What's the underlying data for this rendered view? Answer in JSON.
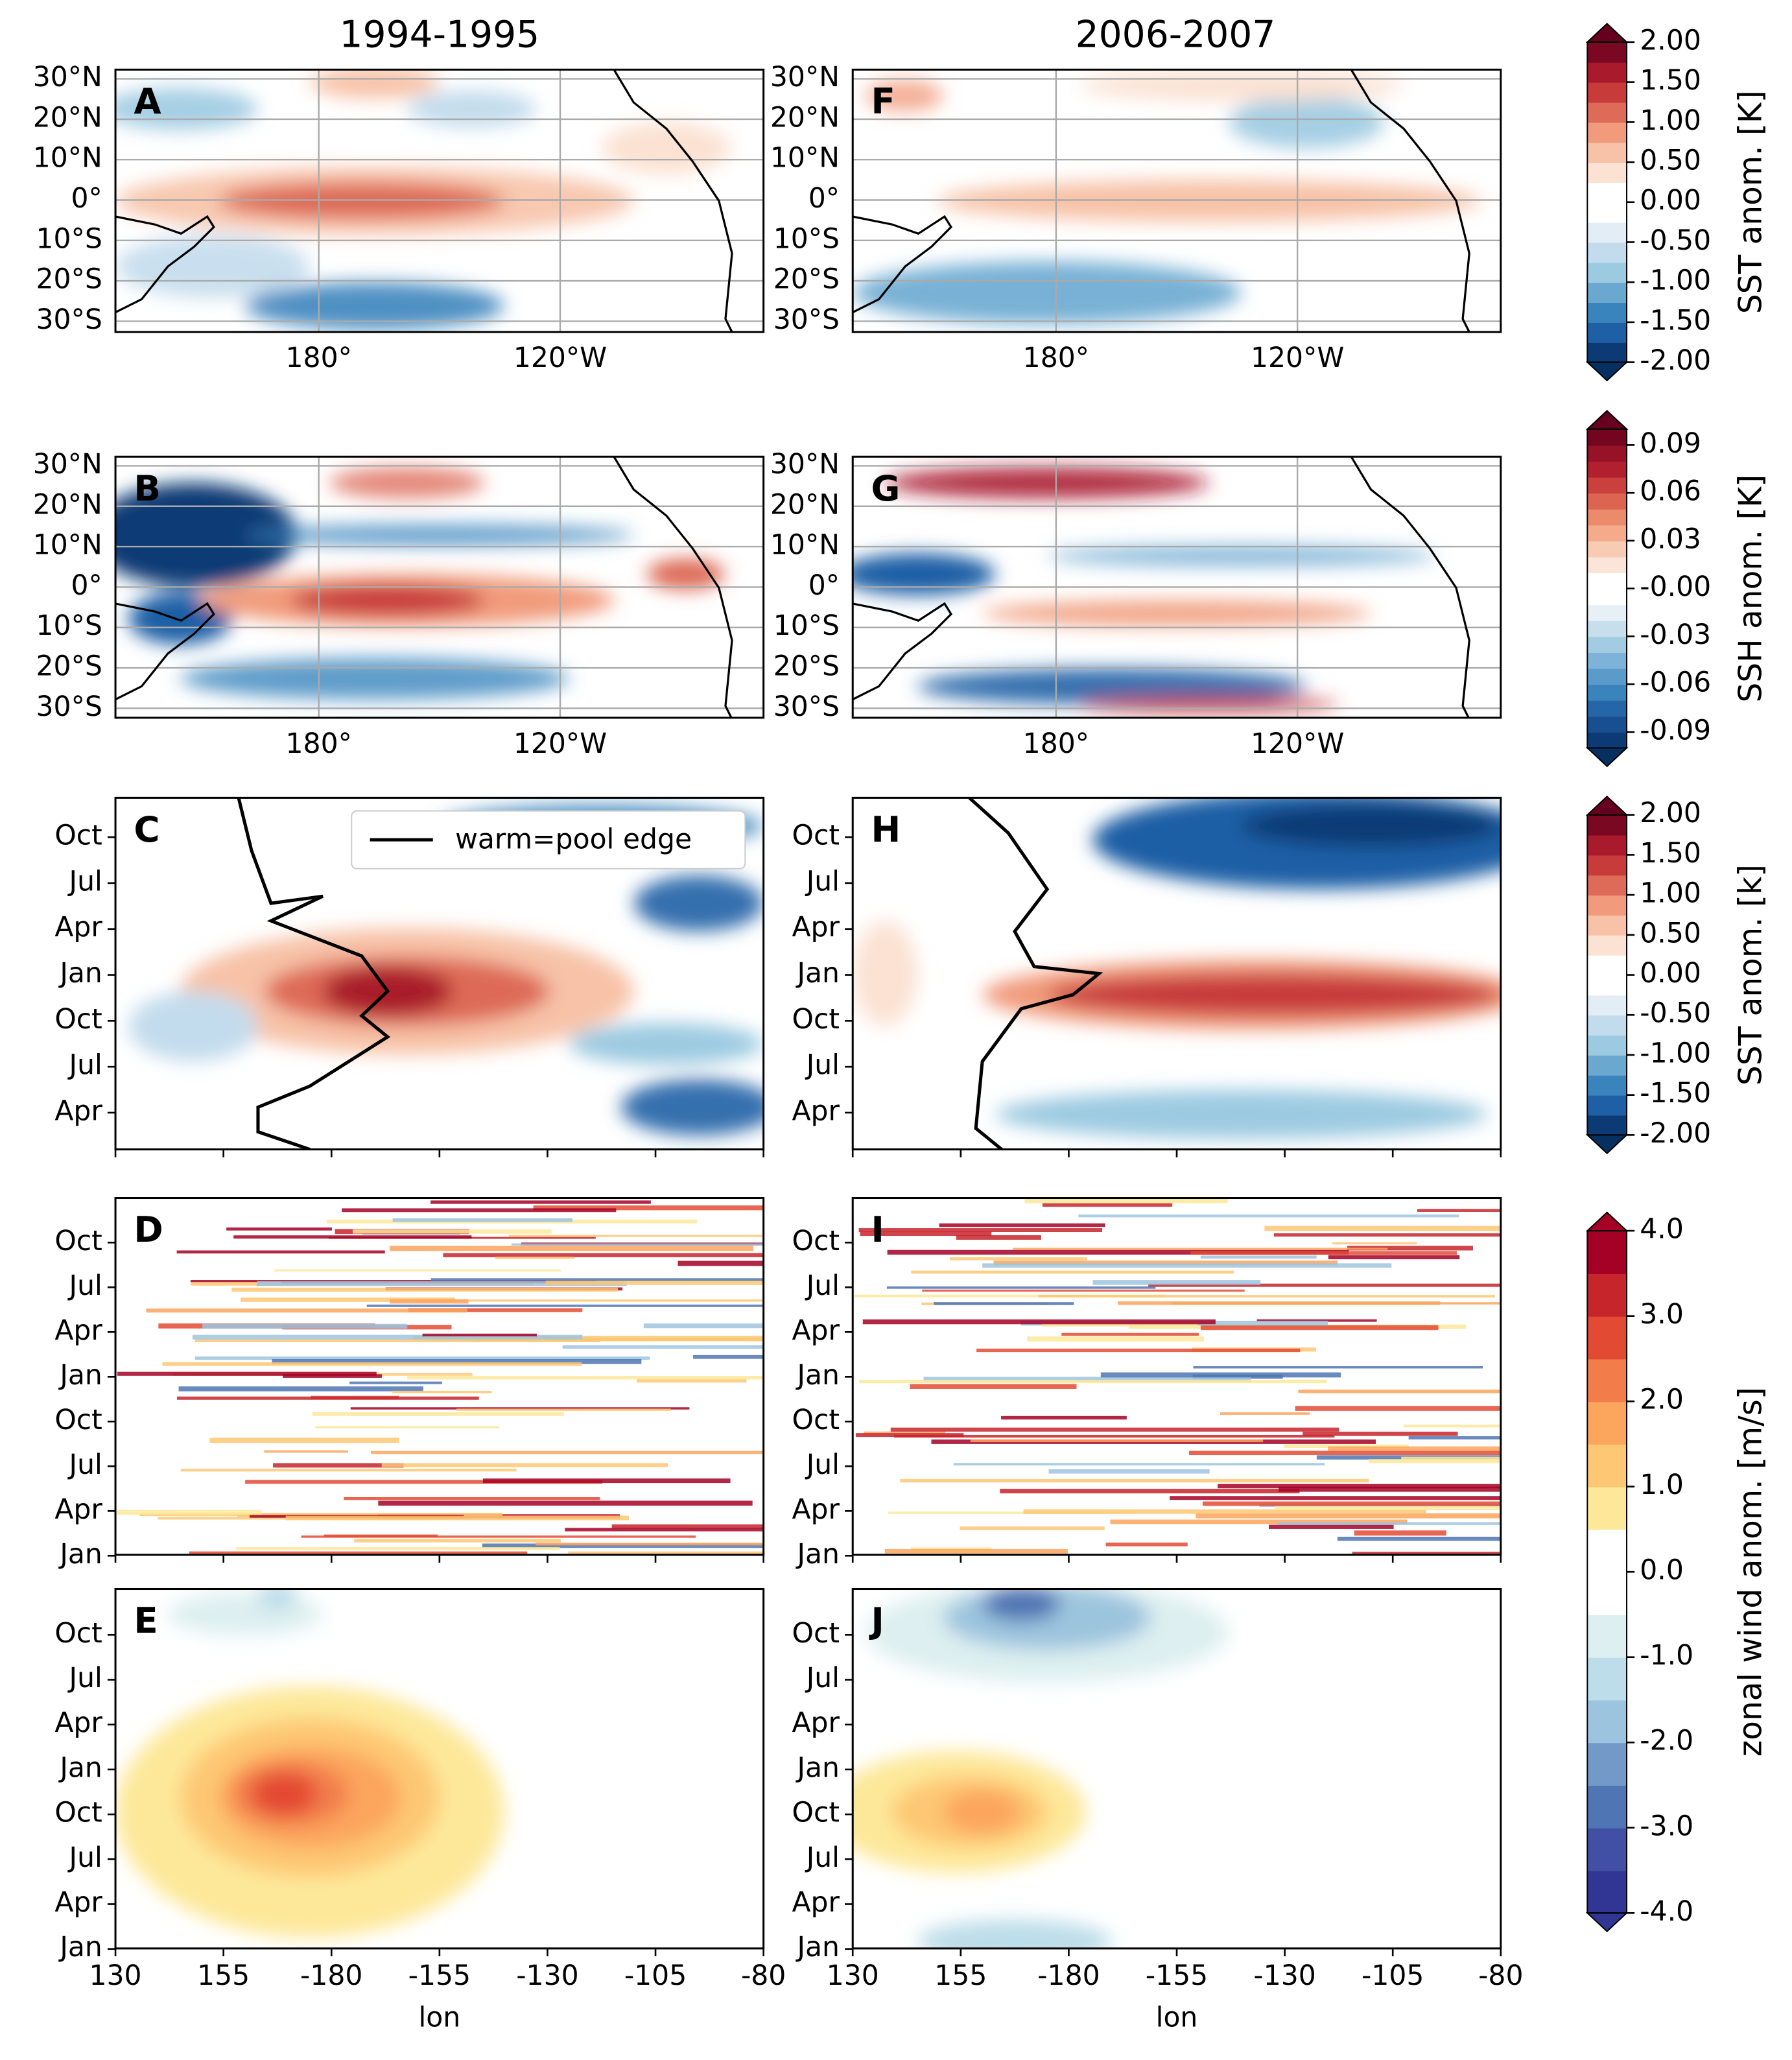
{
  "columns": [
    "1994-1995",
    "2006-2007"
  ],
  "panel_letters": [
    [
      "A",
      "B",
      "C",
      "D",
      "E"
    ],
    [
      "F",
      "G",
      "H",
      "I",
      "J"
    ]
  ],
  "map_axes": {
    "lat_ticks": [
      "30°N",
      "20°N",
      "10°N",
      "0°",
      "10°S",
      "20°S",
      "30°S"
    ],
    "lon_ticks": [
      "180°",
      "120°W"
    ]
  },
  "hovmoller_axes": {
    "time_ticks_C": [
      "Oct",
      "Jul",
      "Apr",
      "Jan",
      "Oct",
      "Jul",
      "Apr"
    ],
    "time_ticks_D": [
      "Oct",
      "Jul",
      "Apr",
      "Jan",
      "Oct",
      "Jul",
      "Apr",
      "Jan"
    ],
    "time_ticks_E": [
      "Oct",
      "Jul",
      "Apr",
      "Jan",
      "Oct",
      "Jul",
      "Apr",
      "Jan"
    ],
    "lon_ticks": [
      130,
      155,
      -180,
      -155,
      -130,
      -105,
      -80
    ],
    "xlabel": "lon"
  },
  "legend": "warm=pool edge",
  "colorbars": [
    {
      "label": "SST anom. [K]",
      "lim": [
        -2,
        2
      ],
      "ticks": [
        {
          "value": 2,
          "label": "2.00"
        },
        {
          "value": 1.5,
          "label": "1.50"
        },
        {
          "value": 1,
          "label": "1.00"
        },
        {
          "value": 0.5,
          "label": "0.50"
        },
        {
          "value": 0,
          "label": "0.00"
        },
        {
          "value": -0.5,
          "label": "-0.50"
        },
        {
          "value": -1,
          "label": "-1.00"
        },
        {
          "value": -1.5,
          "label": "-1.50"
        },
        {
          "value": -2,
          "label": "-2.00"
        }
      ],
      "colors": [
        "#0b3a75",
        "#1f5fa5",
        "#3a84bd",
        "#6aa8d0",
        "#9ccae1",
        "#c3dced",
        "#e2edf5",
        "#ffffff",
        "#ffffff",
        "#fbe2d3",
        "#f7c2a7",
        "#f19b7c",
        "#dd6b57",
        "#c73b3a",
        "#a91a2c",
        "#7a0822"
      ],
      "under": "#053061",
      "over": "#67001f"
    },
    {
      "label": "SSH anom. [K]",
      "lim": [
        -0.1,
        0.1
      ],
      "ticks": [
        {
          "value": 0.09,
          "label": "0.09"
        },
        {
          "value": 0.06,
          "label": "0.06"
        },
        {
          "value": 0.03,
          "label": "0.03"
        },
        {
          "value": 0,
          "label": "-0.00"
        },
        {
          "value": -0.03,
          "label": "-0.03"
        },
        {
          "value": -0.06,
          "label": "-0.06"
        },
        {
          "value": -0.09,
          "label": "-0.09"
        }
      ],
      "colors": [
        "#0b3a75",
        "#174f91",
        "#2466a8",
        "#3a84bd",
        "#5a9bcb",
        "#7db3d8",
        "#a3cbe2",
        "#c7deed",
        "#e6f0f6",
        "#ffffff",
        "#ffffff",
        "#fbe5d8",
        "#f8cbb3",
        "#f4ab8c",
        "#ec8a6c",
        "#dc6552",
        "#c9403c",
        "#b2202f",
        "#961227",
        "#73051f"
      ],
      "under": "#053061",
      "over": "#67001f"
    },
    {
      "label": "SST anom. [k]",
      "lim": [
        -2,
        2
      ],
      "ticks": [
        {
          "value": 2,
          "label": "2.00"
        },
        {
          "value": 1.5,
          "label": "1.50"
        },
        {
          "value": 1,
          "label": "1.00"
        },
        {
          "value": 0.5,
          "label": "0.50"
        },
        {
          "value": 0,
          "label": "0.00"
        },
        {
          "value": -0.5,
          "label": "-0.50"
        },
        {
          "value": -1,
          "label": "-1.00"
        },
        {
          "value": -1.5,
          "label": "-1.50"
        },
        {
          "value": -2,
          "label": "-2.00"
        }
      ],
      "colors": [
        "#0b3a75",
        "#1f5fa5",
        "#3a84bd",
        "#6aa8d0",
        "#9ccae1",
        "#c3dced",
        "#e2edf5",
        "#ffffff",
        "#ffffff",
        "#fbe2d3",
        "#f7c2a7",
        "#f19b7c",
        "#dd6b57",
        "#c73b3a",
        "#a91a2c",
        "#7a0822"
      ],
      "under": "#053061",
      "over": "#67001f"
    },
    {
      "label": "zonal wind anom. [m/s]",
      "lim": [
        -4,
        4
      ],
      "ticks": [
        {
          "value": 4,
          "label": "4.0"
        },
        {
          "value": 3,
          "label": "3.0"
        },
        {
          "value": 2,
          "label": "2.0"
        },
        {
          "value": 1,
          "label": "1.0"
        },
        {
          "value": 0,
          "label": "0.0"
        },
        {
          "value": -1,
          "label": "-1.0"
        },
        {
          "value": -2,
          "label": "-2.0"
        },
        {
          "value": -3,
          "label": "-3.0"
        },
        {
          "value": -4,
          "label": "-4.0"
        }
      ],
      "colors": [
        "#313695",
        "#4150a5",
        "#4f75b4",
        "#7399c8",
        "#9dc4de",
        "#bcdde9",
        "#ddeff0",
        "#ffffff",
        "#ffffff",
        "#fde89a",
        "#fdc773",
        "#fca55d",
        "#f27d4b",
        "#e34a33",
        "#c7252c",
        "#a50026"
      ],
      "under": "#313695",
      "over": "#a50026"
    }
  ]
}
